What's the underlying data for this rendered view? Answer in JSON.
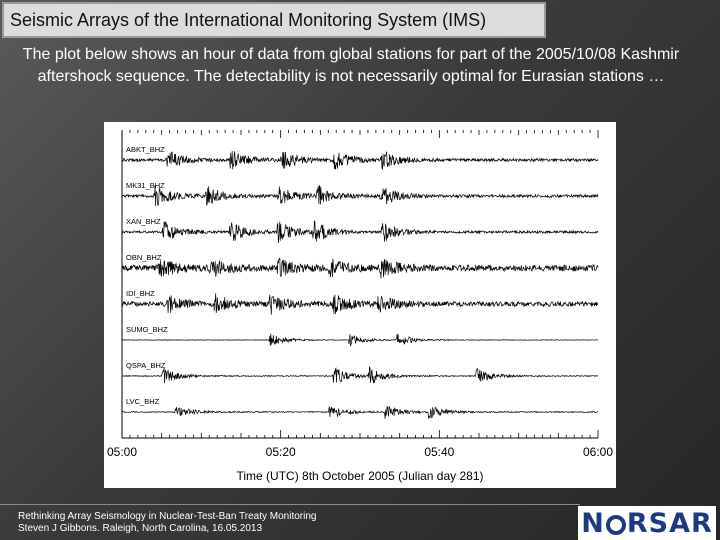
{
  "slide": {
    "title": "Seismic Arrays of the International Monitoring System (IMS)",
    "subtitle": "The plot below shows an hour of data from global stations for part of the 2005/10/08 Kashmir aftershock sequence. The detectability is not necessarily optimal for Eurasian stations …",
    "footer_line1": "Rethinking Array Seismology in Nuclear-Test-Ban Treaty Monitoring",
    "footer_line2": "Steven J Gibbons. Raleigh, North Carolina, 16.05.2013",
    "logo_left": "N",
    "logo_right": "RSAR"
  },
  "chart_data": {
    "type": "line",
    "xlabel": "Time (UTC) 8th October 2005 (Julian day 281)",
    "x_ticks": [
      "05:00",
      "05:20",
      "05:40",
      "06:00"
    ],
    "x_range_minutes": [
      0,
      60
    ],
    "traces": [
      {
        "name": "ABKT_BHZ",
        "events_min": [
          5.5,
          13.5,
          20,
          26.5,
          32.5
        ],
        "noise": 0.12,
        "amp": 0.9
      },
      {
        "name": "MK31_BHZ",
        "events_min": [
          4,
          10.5,
          19.5,
          24.5,
          32.5
        ],
        "noise": 0.12,
        "amp": 0.9
      },
      {
        "name": "XAN_BHZ",
        "events_min": [
          5,
          13.5,
          19.5,
          24,
          32.5
        ],
        "noise": 0.1,
        "amp": 1.0
      },
      {
        "name": "OBN_BHZ",
        "events_min": [
          4.5,
          11,
          19.5,
          26,
          32.5
        ],
        "noise": 0.25,
        "amp": 0.8
      },
      {
        "name": "IDI_BHZ",
        "events_min": [
          5.5,
          11.5,
          18.5,
          26.5,
          32
        ],
        "noise": 0.2,
        "amp": 0.8
      },
      {
        "name": "SUMG_BHZ",
        "events_min": [
          18.5,
          28.5,
          34.5
        ],
        "noise": 0.02,
        "amp": 0.6
      },
      {
        "name": "QSPA_BHZ",
        "events_min": [
          5,
          26.5,
          31,
          44.5
        ],
        "noise": 0.04,
        "amp": 0.8
      },
      {
        "name": "LVC_BHZ",
        "events_min": [
          6.5,
          26,
          33,
          38.5
        ],
        "noise": 0.04,
        "amp": 0.6
      }
    ]
  }
}
